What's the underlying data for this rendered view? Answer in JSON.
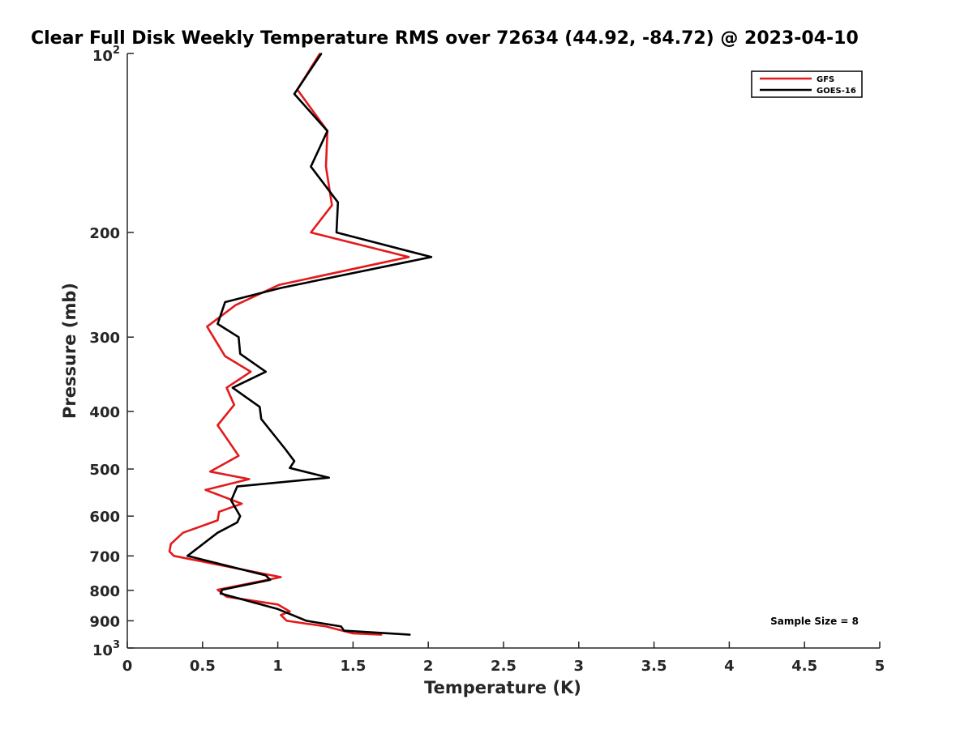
{
  "chart_data": {
    "type": "line",
    "title": "Clear Full Disk Weekly Temperature RMS over 72634 (44.92, -84.72) @ 2023-04-10",
    "xlabel": "Temperature (K)",
    "ylabel": "Pressure (mb)",
    "xlim": [
      0,
      5
    ],
    "ylim": [
      100,
      1000
    ],
    "y_scale": "log",
    "y_reversed": true,
    "x_ticks": [
      "0",
      "0.5",
      "1",
      "1.5",
      "2",
      "2.5",
      "3",
      "3.5",
      "4",
      "4.5",
      "5"
    ],
    "y_ticks": [
      {
        "value": 200,
        "label": "200"
      },
      {
        "value": 300,
        "label": "300"
      },
      {
        "value": 400,
        "label": "400"
      },
      {
        "value": 500,
        "label": "500"
      },
      {
        "value": 600,
        "label": "600"
      },
      {
        "value": 700,
        "label": "700"
      },
      {
        "value": 800,
        "label": "800"
      },
      {
        "value": 900,
        "label": "900"
      }
    ],
    "y_tick_power_labels": [
      {
        "value": 100,
        "base": "10",
        "exp": "2"
      },
      {
        "value": 1000,
        "base": "10",
        "exp": "3"
      }
    ],
    "legend_position": "top-right",
    "annotation": "Sample Size = 8",
    "series": [
      {
        "name": "GFS",
        "color": "#e31a1c",
        "points": [
          [
            1.28,
            100
          ],
          [
            1.13,
            115
          ],
          [
            1.33,
            135
          ],
          [
            1.32,
            155
          ],
          [
            1.36,
            180
          ],
          [
            1.22,
            200
          ],
          [
            1.87,
            220
          ],
          [
            1.01,
            245
          ],
          [
            0.72,
            265
          ],
          [
            0.53,
            288
          ],
          [
            0.65,
            323
          ],
          [
            0.82,
            343
          ],
          [
            0.66,
            365
          ],
          [
            0.71,
            390
          ],
          [
            0.6,
            422
          ],
          [
            0.74,
            475
          ],
          [
            0.55,
            505
          ],
          [
            0.81,
            520
          ],
          [
            0.52,
            542
          ],
          [
            0.76,
            572
          ],
          [
            0.61,
            590
          ],
          [
            0.6,
            610
          ],
          [
            0.37,
            640
          ],
          [
            0.29,
            668
          ],
          [
            0.28,
            688
          ],
          [
            0.31,
            700
          ],
          [
            1.02,
            760
          ],
          [
            0.6,
            798
          ],
          [
            0.66,
            820
          ],
          [
            1.0,
            845
          ],
          [
            1.08,
            868
          ],
          [
            1.02,
            880
          ],
          [
            1.06,
            900
          ],
          [
            1.32,
            920
          ],
          [
            1.5,
            945
          ],
          [
            1.69,
            950
          ]
        ]
      },
      {
        "name": "GOES-16",
        "color": "#000000",
        "points": [
          [
            1.29,
            100
          ],
          [
            1.11,
            117
          ],
          [
            1.33,
            135
          ],
          [
            1.22,
            155
          ],
          [
            1.4,
            178
          ],
          [
            1.39,
            200
          ],
          [
            2.02,
            220
          ],
          [
            1.02,
            248
          ],
          [
            0.65,
            262
          ],
          [
            0.6,
            285
          ],
          [
            0.74,
            300
          ],
          [
            0.75,
            320
          ],
          [
            0.92,
            343
          ],
          [
            0.7,
            365
          ],
          [
            0.88,
            393
          ],
          [
            0.89,
            412
          ],
          [
            1.05,
            463
          ],
          [
            1.11,
            485
          ],
          [
            1.08,
            498
          ],
          [
            1.34,
            517
          ],
          [
            0.73,
            535
          ],
          [
            0.69,
            565
          ],
          [
            0.75,
            600
          ],
          [
            0.73,
            615
          ],
          [
            0.6,
            640
          ],
          [
            0.4,
            700
          ],
          [
            0.92,
            755
          ],
          [
            0.95,
            768
          ],
          [
            0.63,
            798
          ],
          [
            0.62,
            810
          ],
          [
            1.0,
            860
          ],
          [
            1.19,
            900
          ],
          [
            1.42,
            920
          ],
          [
            1.44,
            935
          ],
          [
            1.88,
            950
          ]
        ]
      }
    ]
  }
}
